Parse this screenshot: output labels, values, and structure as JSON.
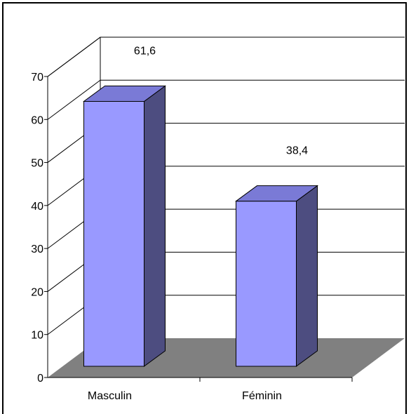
{
  "chart_data": {
    "type": "bar",
    "style": "3d-column",
    "categories": [
      "Masculin",
      "Féminin"
    ],
    "values": [
      61.6,
      38.4
    ],
    "value_labels": [
      "61,6",
      "38,4"
    ],
    "ylim": [
      0,
      70
    ],
    "y_ticks": [
      0,
      10,
      20,
      30,
      40,
      50,
      60,
      70
    ],
    "grid": true,
    "legend": "none",
    "colors": {
      "bar_front": "#9999FF",
      "bar_side": "#4D4D80",
      "bar_top": "#7A7AD6",
      "floor": "#808080",
      "gridline": "#000000"
    }
  }
}
